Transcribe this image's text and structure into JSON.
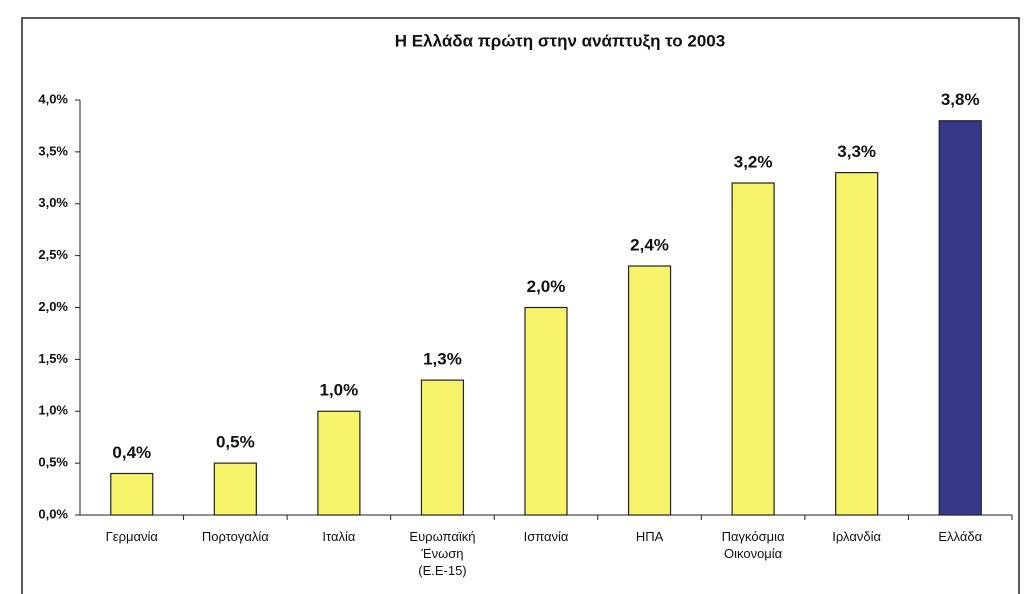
{
  "chart_data": {
    "type": "bar",
    "title": "Η Ελλάδα πρώτη στην ανάπτυξη το 2003",
    "categories": [
      "Γερμανία",
      "Πορτογαλία",
      "Ιταλία",
      "Ευρωπαϊκή\nΈνωση\n(Ε.Ε-15)",
      "Ισπανία",
      "ΗΠΑ",
      "Παγκόσμια\nΟικονομία",
      "Ιρλανδία",
      "Ελλάδα"
    ],
    "values": [
      0.4,
      0.5,
      1.0,
      1.3,
      2.0,
      2.4,
      3.2,
      3.3,
      3.8
    ],
    "value_labels": [
      "0,4%",
      "0,5%",
      "1,0%",
      "1,3%",
      "2,0%",
      "2,4%",
      "3,2%",
      "3,3%",
      "3,8%"
    ],
    "colors": [
      "#f7f36a",
      "#f7f36a",
      "#f7f36a",
      "#f7f36a",
      "#f7f36a",
      "#f7f36a",
      "#f7f36a",
      "#f7f36a",
      "#36388a"
    ],
    "ylim": [
      0,
      4
    ],
    "yticks": [
      {
        "value": 0,
        "label": "0,0%"
      },
      {
        "value": 0.5,
        "label": "0,5%"
      },
      {
        "value": 1,
        "label": "1,0%"
      },
      {
        "value": 1.5,
        "label": "1,5%"
      },
      {
        "value": 2,
        "label": "2,0%"
      },
      {
        "value": 2.5,
        "label": "2,5%"
      },
      {
        "value": 3,
        "label": "3,0%"
      },
      {
        "value": 3.5,
        "label": "3,5%"
      },
      {
        "value": 4,
        "label": "4,0%"
      }
    ]
  }
}
